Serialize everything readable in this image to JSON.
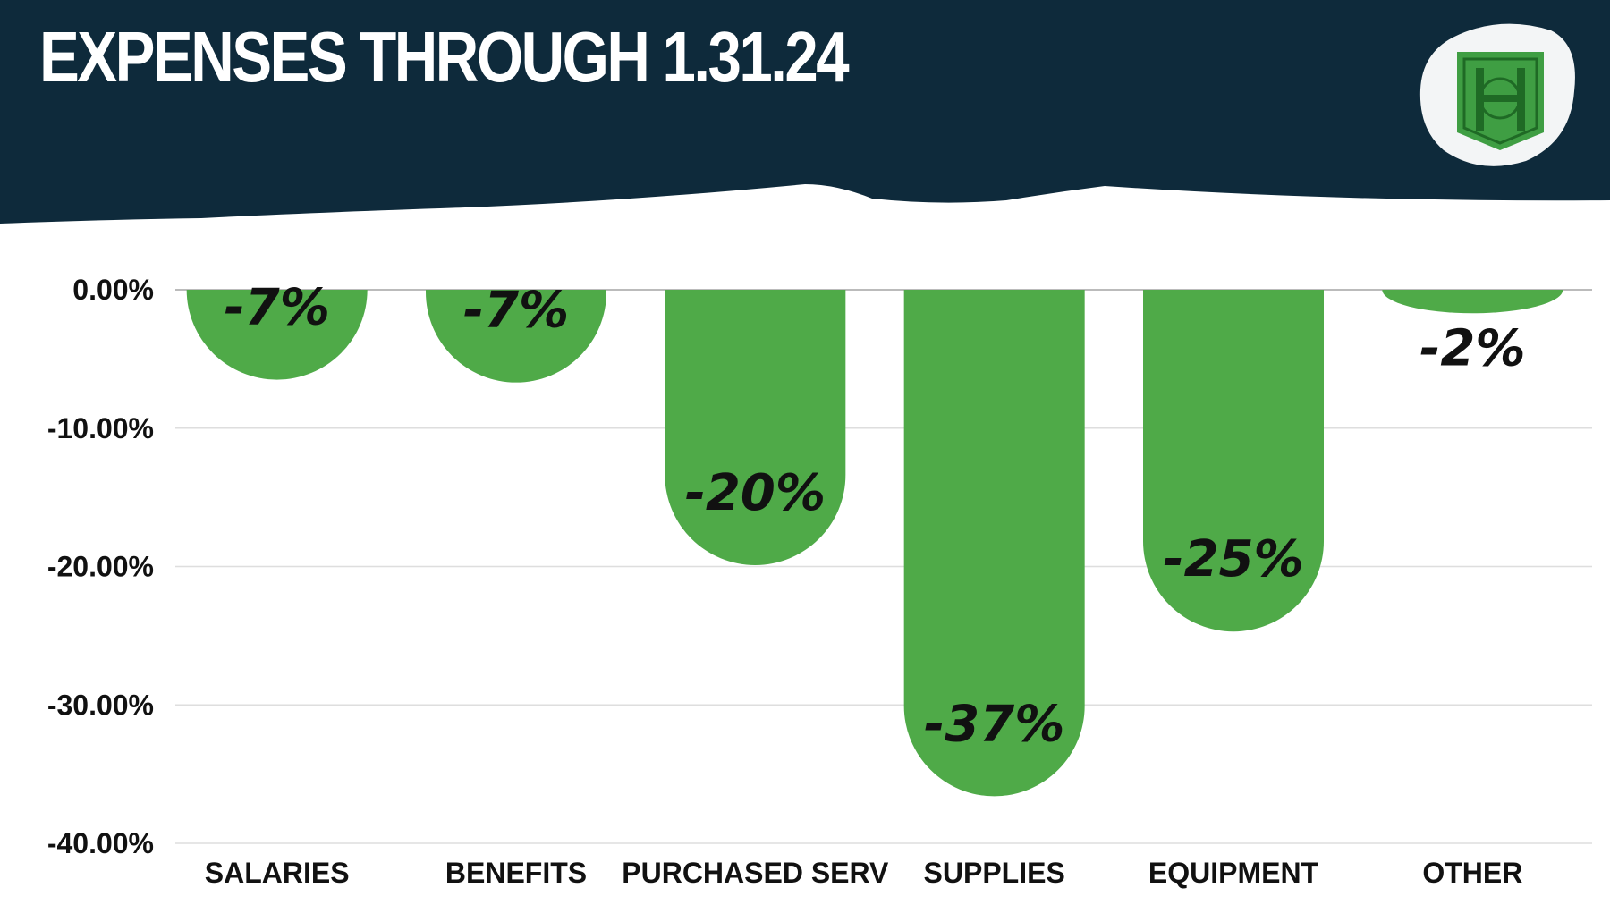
{
  "header": {
    "title": "EXPENSES THROUGH 1.31.24",
    "background_color": "#0e2a3b",
    "logo": {
      "letter": "H",
      "icon": "shield-h-logo-icon",
      "color": "#3f9e43",
      "badge_color": "#f3f5f6"
    }
  },
  "colors": {
    "bar": "#4faa48",
    "gridline": "#dedede",
    "zero_line": "#bbbbbb",
    "text": "#111111"
  },
  "chart_data": {
    "type": "bar",
    "title": "EXPENSES THROUGH 1.31.24",
    "xlabel": "",
    "ylabel": "",
    "categories": [
      "SALARIES",
      "BENEFITS",
      "PURCHASED SERV",
      "SUPPLIES",
      "EQUIPMENT",
      "OTHER"
    ],
    "values": [
      -6.5,
      -6.7,
      -19.9,
      -36.6,
      -24.7,
      -1.7
    ],
    "data_labels": [
      "-7%",
      "-7%",
      "-20%",
      "-37%",
      "-25%",
      "-2%"
    ],
    "ylim": [
      -40,
      0
    ],
    "yticks": [
      0,
      -10,
      -20,
      -30,
      -40
    ],
    "ytick_labels": [
      "0.00%",
      "-10.00%",
      "-20.00%",
      "-30.00%",
      "-40.00%"
    ],
    "grid": true,
    "legend": "none"
  }
}
